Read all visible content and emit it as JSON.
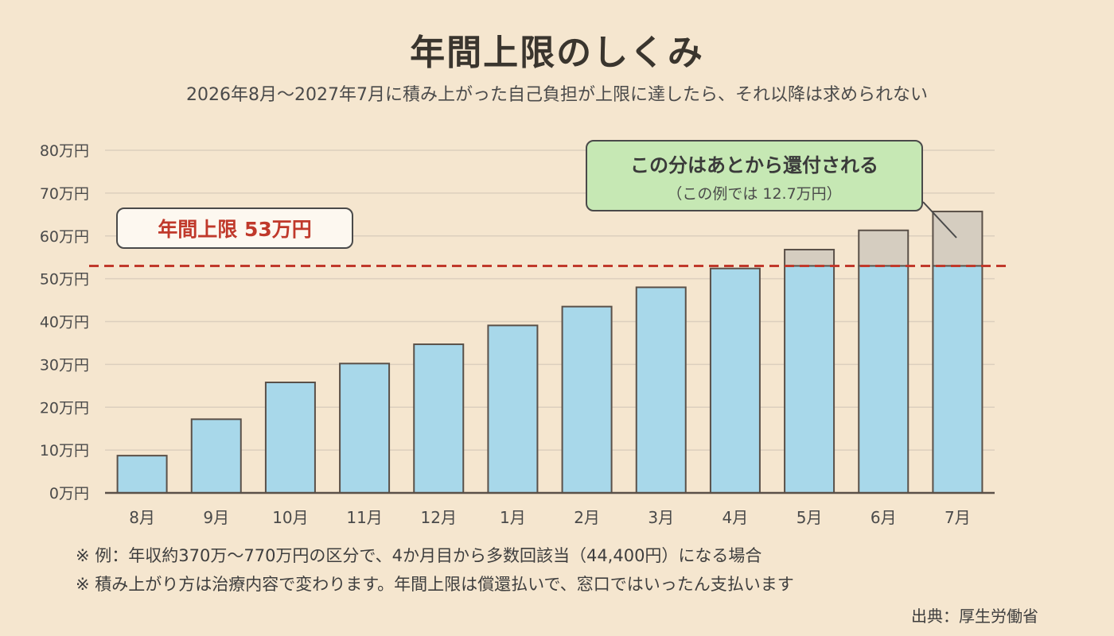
{
  "title": "年間上限のしくみ",
  "subtitle": "2026年8月〜2027年7月に積み上がった自己負担が上限に達したら、それ以降は求められない",
  "cap_label": "年間上限 53万円",
  "refund": {
    "main": "この分はあとから還付される",
    "sub": "（この例では 12.7万円）"
  },
  "notes": [
    "※ 例：年収約370万〜770万円の区分で、4か月目から多数回該当（44,400円）になる場合",
    "※ 積み上がり方は治療内容で変わります。年間上限は償還払いで、窓口ではいったん支払います"
  ],
  "source": "出典：厚生労働省",
  "colors": {
    "background": "#f5e6cf",
    "bar": "#a8d8ea",
    "excess": "#d5cdc0",
    "cap_line": "#c0392b",
    "refund_box": "#c6e8b4"
  },
  "chart_data": {
    "type": "bar",
    "categories": [
      "8月",
      "9月",
      "10月",
      "11月",
      "12月",
      "1月",
      "2月",
      "3月",
      "4月",
      "5月",
      "6月",
      "7月"
    ],
    "values": [
      8.7,
      17.2,
      25.8,
      30.2,
      34.7,
      39.1,
      43.5,
      48.0,
      52.4,
      56.8,
      61.3,
      65.7
    ],
    "cap": 53,
    "ylim": [
      0,
      80
    ],
    "yticks": [
      0,
      10,
      20,
      30,
      40,
      50,
      60,
      70,
      80
    ],
    "ytick_labels": [
      "0万円",
      "10万円",
      "20万円",
      "30万円",
      "40万円",
      "50万円",
      "60万円",
      "70万円",
      "80万円"
    ],
    "grid": true
  }
}
